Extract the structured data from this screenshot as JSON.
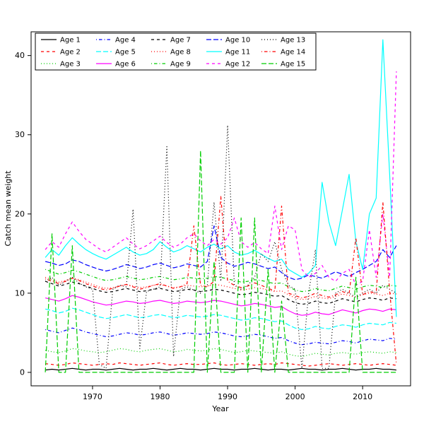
{
  "figure": {
    "background": "#ffffff",
    "border": "#000000"
  },
  "chart_data": {
    "type": "line",
    "title": "",
    "xlabel": "Year",
    "ylabel": "Catch mean weight",
    "x_range": [
      1960.9,
      2017.1
    ],
    "y_range": [
      -1.7,
      43.0
    ],
    "xticks": [
      1970,
      1980,
      1990,
      2000,
      2010
    ],
    "yticks": [
      0,
      10,
      20,
      30,
      40
    ],
    "grid": false,
    "legend": {
      "position": "top-left",
      "ncol": 5,
      "order": "column-major"
    },
    "x": [
      1963,
      1964,
      1965,
      1966,
      1967,
      1968,
      1969,
      1970,
      1971,
      1972,
      1973,
      1974,
      1975,
      1976,
      1977,
      1978,
      1979,
      1980,
      1981,
      1982,
      1983,
      1984,
      1985,
      1986,
      1987,
      1988,
      1989,
      1990,
      1991,
      1992,
      1993,
      1994,
      1995,
      1996,
      1997,
      1998,
      1999,
      2000,
      2001,
      2002,
      2003,
      2004,
      2005,
      2006,
      2007,
      2008,
      2009,
      2010,
      2011,
      2012,
      2013,
      2014,
      2015
    ],
    "series": [
      {
        "name": "Age 1",
        "color": "#000000",
        "lty": "solid",
        "values": [
          0.3,
          0.4,
          0.3,
          0.4,
          0.5,
          0.4,
          0.3,
          0.4,
          0.4,
          0.3,
          0.4,
          0.5,
          0.4,
          0.3,
          0.4,
          0.4,
          0.5,
          0.4,
          0.3,
          0.4,
          0.5,
          0.4,
          0.4,
          0.3,
          0.4,
          0.5,
          0.4,
          0.4,
          0.3,
          0.4,
          0.4,
          0.5,
          0.4,
          0.3,
          0.4,
          0.4,
          0.3,
          0.4,
          0.5,
          0.4,
          0.4,
          0.3,
          0.4,
          0.4,
          0.5,
          0.4,
          0.3,
          0.4,
          0.4,
          0.5,
          0.4,
          0.4,
          0.3
        ]
      },
      {
        "name": "Age 2",
        "color": "#FF0000",
        "lty": "dashed",
        "values": [
          1.1,
          1.0,
          0.9,
          1.0,
          1.2,
          1.1,
          1.0,
          0.9,
          1.0,
          1.1,
          1.0,
          1.2,
          1.1,
          1.0,
          0.9,
          1.0,
          1.1,
          1.2,
          1.0,
          0.9,
          1.0,
          1.1,
          1.0,
          1.0,
          1.1,
          1.2,
          1.0,
          0.9,
          1.0,
          1.1,
          1.0,
          0.9,
          1.0,
          1.1,
          1.0,
          1.2,
          1.1,
          1.0,
          0.9,
          0.8,
          0.9,
          1.0,
          1.1,
          1.0,
          0.9,
          1.0,
          1.1,
          1.0,
          0.9,
          1.0,
          1.1,
          1.0,
          0.9
        ]
      },
      {
        "name": "Age 3",
        "color": "#00CD00",
        "lty": "dotted",
        "values": [
          2.8,
          2.6,
          2.5,
          2.7,
          3.0,
          2.9,
          2.7,
          2.6,
          2.5,
          2.6,
          2.8,
          3.0,
          2.9,
          2.7,
          2.6,
          2.8,
          2.9,
          3.0,
          2.8,
          2.6,
          2.7,
          2.9,
          2.8,
          2.7,
          2.8,
          3.0,
          2.9,
          2.7,
          2.5,
          2.6,
          2.8,
          2.7,
          2.6,
          2.5,
          2.4,
          2.6,
          2.3,
          2.1,
          2.0,
          2.2,
          2.4,
          2.3,
          2.2,
          2.4,
          2.5,
          2.4,
          2.3,
          2.5,
          2.6,
          2.5,
          2.4,
          2.6,
          2.5
        ]
      },
      {
        "name": "Age 4",
        "color": "#0000FF",
        "lty": "dotdash",
        "values": [
          5.4,
          5.2,
          5.0,
          5.3,
          5.6,
          5.4,
          5.1,
          4.9,
          4.7,
          4.5,
          4.6,
          4.8,
          5.0,
          4.9,
          4.7,
          4.8,
          5.0,
          5.1,
          4.9,
          4.7,
          4.8,
          5.0,
          4.9,
          4.8,
          4.9,
          5.1,
          5.0,
          4.8,
          4.6,
          4.5,
          4.6,
          4.8,
          4.7,
          4.5,
          4.3,
          4.4,
          4.0,
          3.7,
          3.5,
          3.6,
          3.8,
          3.7,
          3.6,
          3.8,
          4.0,
          3.9,
          3.7,
          4.0,
          4.2,
          4.1,
          4.0,
          4.3,
          4.2
        ]
      },
      {
        "name": "Age 5",
        "color": "#00FFFF",
        "lty": "longdash",
        "values": [
          8.0,
          7.8,
          7.5,
          7.7,
          8.1,
          7.9,
          7.6,
          7.3,
          7.0,
          6.8,
          6.9,
          7.1,
          7.3,
          7.1,
          6.9,
          7.0,
          7.2,
          7.3,
          7.1,
          6.9,
          7.0,
          7.2,
          7.1,
          7.0,
          7.1,
          7.3,
          7.2,
          7.0,
          6.8,
          6.6,
          6.7,
          6.9,
          6.8,
          6.6,
          6.4,
          6.5,
          6.0,
          5.6,
          5.4,
          5.5,
          5.8,
          5.6,
          5.5,
          5.8,
          6.0,
          5.9,
          5.7,
          6.0,
          6.2,
          6.1,
          6.0,
          6.3,
          6.2
        ]
      },
      {
        "name": "Age 6",
        "color": "#FF00FF",
        "lty": "solid",
        "values": [
          9.4,
          9.2,
          9.0,
          9.3,
          9.7,
          9.5,
          9.2,
          8.9,
          8.7,
          8.5,
          8.6,
          8.8,
          9.0,
          8.9,
          8.7,
          8.8,
          9.0,
          9.1,
          8.9,
          8.7,
          8.8,
          9.0,
          8.9,
          8.8,
          8.9,
          9.1,
          9.0,
          8.8,
          8.6,
          8.4,
          8.5,
          8.7,
          8.6,
          8.4,
          8.2,
          8.3,
          7.8,
          7.4,
          7.2,
          7.3,
          7.6,
          7.4,
          7.3,
          7.6,
          7.9,
          7.7,
          7.5,
          7.8,
          8.0,
          7.9,
          7.7,
          8.0,
          7.9
        ]
      },
      {
        "name": "Age 7",
        "color": "#000000",
        "lty": "dashed",
        "values": [
          11.5,
          11.2,
          10.9,
          11.1,
          11.4,
          11.2,
          10.9,
          10.6,
          10.3,
          10.1,
          10.2,
          10.4,
          10.6,
          10.4,
          10.2,
          10.3,
          10.5,
          10.6,
          10.4,
          10.2,
          10.3,
          10.5,
          10.4,
          10.2,
          10.3,
          10.5,
          10.4,
          10.2,
          10.0,
          9.8,
          9.9,
          10.1,
          10.0,
          9.8,
          9.6,
          9.7,
          9.2,
          8.8,
          8.6,
          8.7,
          9.0,
          8.8,
          8.7,
          9.0,
          9.3,
          9.1,
          8.9,
          9.2,
          9.4,
          9.3,
          9.1,
          9.4,
          9.3
        ]
      },
      {
        "name": "Age 8",
        "color": "#FF0000",
        "lty": "dotted",
        "values": [
          12.0,
          11.7,
          11.4,
          11.6,
          11.9,
          11.7,
          11.4,
          11.1,
          10.8,
          10.6,
          10.7,
          10.9,
          11.1,
          10.9,
          10.7,
          10.8,
          11.0,
          11.1,
          10.9,
          10.7,
          10.8,
          11.0,
          10.9,
          10.8,
          10.9,
          11.1,
          11.0,
          10.8,
          10.6,
          10.4,
          10.5,
          10.7,
          10.6,
          10.4,
          10.2,
          10.3,
          9.8,
          9.4,
          9.2,
          9.3,
          9.6,
          9.4,
          9.3,
          9.6,
          9.9,
          9.7,
          9.5,
          9.8,
          10.0,
          9.9,
          9.7,
          10.0,
          9.9
        ]
      },
      {
        "name": "Age 9",
        "color": "#00CD00",
        "lty": "dotdash",
        "values": [
          13.0,
          12.7,
          12.4,
          12.6,
          12.9,
          12.7,
          12.4,
          12.1,
          11.8,
          11.6,
          11.7,
          11.9,
          12.1,
          11.9,
          11.7,
          11.8,
          12.0,
          12.1,
          11.9,
          11.7,
          11.8,
          12.0,
          11.9,
          11.8,
          11.9,
          12.1,
          12.0,
          11.8,
          11.6,
          11.4,
          11.5,
          11.7,
          11.6,
          11.4,
          11.2,
          11.3,
          10.8,
          10.4,
          10.2,
          10.3,
          10.6,
          10.4,
          10.3,
          10.6,
          10.9,
          10.7,
          10.5,
          10.8,
          11.0,
          10.9,
          10.7,
          11.0,
          10.9
        ]
      },
      {
        "name": "Age 10",
        "color": "#0000FF",
        "lty": "longdash",
        "values": [
          14.0,
          13.8,
          13.5,
          13.7,
          14.2,
          14.0,
          13.6,
          13.3,
          13.0,
          12.8,
          13.0,
          13.3,
          13.6,
          13.4,
          13.1,
          13.3,
          13.6,
          13.8,
          13.5,
          13.2,
          13.4,
          13.7,
          13.5,
          13.3,
          14.0,
          18.5,
          14.5,
          13.8,
          13.4,
          13.6,
          13.9,
          13.7,
          13.4,
          13.1,
          13.3,
          12.6,
          12.0,
          11.7,
          11.9,
          12.3,
          12.1,
          11.9,
          12.3,
          12.7,
          12.4,
          12.1,
          12.6,
          13.0,
          13.5,
          14.0,
          15.5,
          14.5,
          16.0
        ]
      },
      {
        "name": "Age 11",
        "color": "#00FFFF",
        "lty": "solid",
        "values": [
          14.5,
          15.5,
          14.8,
          16.0,
          17.0,
          16.2,
          15.5,
          15.0,
          14.6,
          14.3,
          14.8,
          15.3,
          15.8,
          15.2,
          14.8,
          15.0,
          15.5,
          16.5,
          15.8,
          15.2,
          15.5,
          16.0,
          15.6,
          15.2,
          15.8,
          16.2,
          15.6,
          16.0,
          15.2,
          14.8,
          15.0,
          15.4,
          14.9,
          14.4,
          14.0,
          14.3,
          13.0,
          12.5,
          12.0,
          12.5,
          13.5,
          24.0,
          19.0,
          16.0,
          20.5,
          25.0,
          16.5,
          13.0,
          20.0,
          22.0,
          42.0,
          25.0,
          7.0
        ]
      },
      {
        "name": "Age 12",
        "color": "#FF00FF",
        "lty": "dashed",
        "values": [
          15.5,
          16.5,
          15.8,
          17.5,
          19.0,
          17.8,
          16.8,
          16.2,
          15.6,
          15.2,
          15.8,
          16.4,
          17.0,
          16.2,
          15.6,
          16.0,
          16.6,
          17.2,
          16.4,
          15.8,
          16.2,
          17.0,
          17.5,
          16.6,
          16.0,
          16.8,
          16.2,
          17.0,
          19.5,
          16.5,
          15.8,
          16.4,
          15.6,
          15.0,
          21.0,
          15.5,
          18.5,
          18.0,
          13.0,
          12.0,
          12.5,
          13.5,
          12.0,
          11.5,
          12.5,
          13.0,
          11.0,
          11.5,
          18.0,
          12.0,
          20.0,
          12.0,
          38.0
        ]
      },
      {
        "name": "Age 13",
        "color": "#000000",
        "lty": "dotted",
        "values": [
          11.5,
          12.0,
          11.0,
          11.5,
          12.0,
          11.3,
          10.8,
          10.5,
          1.0,
          0.5,
          10.5,
          11.0,
          10.8,
          20.6,
          3.0,
          10.2,
          10.5,
          10.8,
          28.5,
          2.0,
          10.5,
          10.8,
          10.4,
          10.0,
          11.0,
          21.5,
          11.5,
          31.2,
          11.0,
          10.5,
          11.0,
          12.0,
          15.0,
          14.0,
          16.5,
          13.0,
          11.0,
          10.5,
          0.5,
          10.0,
          15.5,
          0.5,
          0.5,
          10.0,
          10.5,
          10.0,
          9.5,
          10.0,
          10.5,
          10.0,
          11.0,
          10.5,
          10.0
        ]
      },
      {
        "name": "Age 14",
        "color": "#FF0000",
        "lty": "dotdash",
        "values": [
          11.8,
          11.5,
          11.2,
          11.5,
          11.9,
          11.6,
          11.2,
          10.9,
          10.6,
          10.4,
          10.6,
          10.9,
          11.1,
          10.8,
          10.5,
          10.7,
          11.0,
          11.2,
          10.9,
          10.6,
          10.8,
          11.2,
          18.5,
          11.0,
          10.8,
          11.5,
          22.2,
          11.5,
          11.0,
          10.7,
          10.9,
          11.3,
          11.0,
          10.6,
          10.3,
          21.0,
          10.0,
          9.7,
          9.4,
          9.6,
          10.0,
          9.7,
          9.5,
          9.8,
          10.2,
          9.9,
          17.0,
          9.8,
          10.2,
          10.0,
          21.5,
          10.3,
          1.0
        ]
      },
      {
        "name": "Age 15",
        "color": "#00CD00",
        "lty": "longdash",
        "values": [
          0,
          17.5,
          0,
          0,
          16.0,
          0,
          0,
          0,
          0,
          0,
          0,
          0,
          0,
          0,
          0,
          0,
          0,
          0,
          0,
          0,
          0,
          0,
          0,
          28.0,
          0,
          14.0,
          0,
          0,
          0,
          19.5,
          0,
          19.5,
          0,
          13.0,
          0,
          9.0,
          0,
          0,
          0,
          0,
          0,
          0,
          0,
          0,
          0,
          0,
          12.0,
          0,
          0,
          0,
          0,
          0,
          0
        ]
      }
    ]
  }
}
